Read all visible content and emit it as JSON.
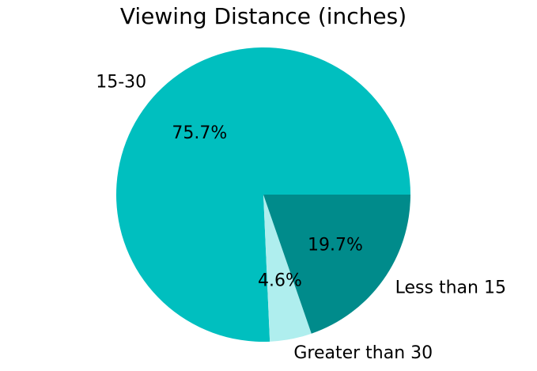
{
  "chart_data": {
    "type": "pie",
    "title": "Viewing Distance (inches)",
    "categories": [
      "15-30",
      "Greater than 30",
      "Less than 15"
    ],
    "values": [
      75.7,
      4.6,
      19.7
    ],
    "value_labels": [
      "75.7%",
      "4.6%",
      "19.7%"
    ],
    "colors": [
      "#00bfbf",
      "#afeeee",
      "#008b8b"
    ]
  }
}
